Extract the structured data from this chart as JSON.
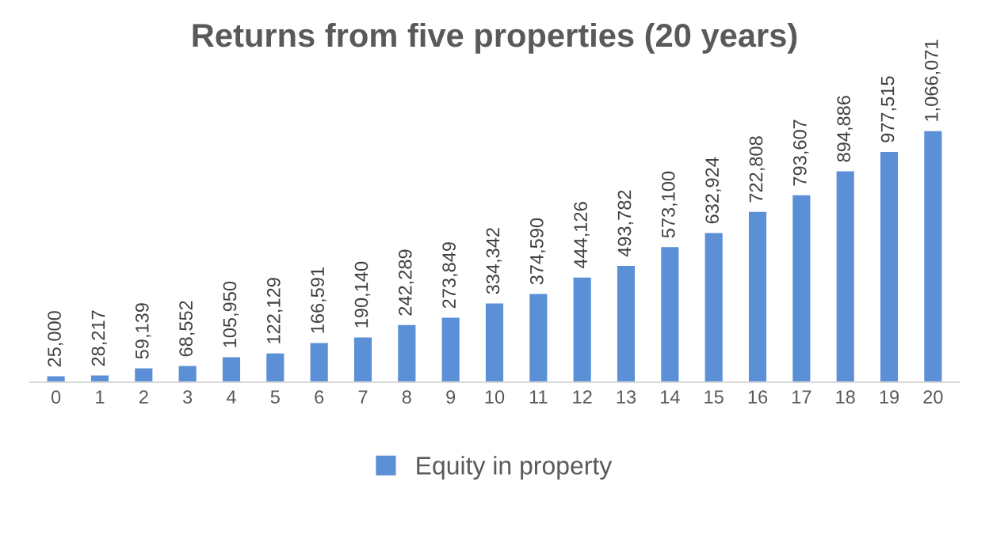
{
  "chart_data": {
    "type": "bar",
    "title": "Returns from five properties (20 years)",
    "categories": [
      "0",
      "1",
      "2",
      "3",
      "4",
      "5",
      "6",
      "7",
      "8",
      "9",
      "10",
      "11",
      "12",
      "13",
      "14",
      "15",
      "16",
      "17",
      "18",
      "19",
      "20"
    ],
    "series": [
      {
        "name": "Equity in property",
        "color": "#5b8fd6",
        "values": [
          25000,
          28217,
          59139,
          68552,
          105950,
          122129,
          166591,
          190140,
          242289,
          273849,
          334342,
          374590,
          444126,
          493782,
          573100,
          632924,
          722808,
          793607,
          894886,
          977515,
          1066071
        ],
        "value_labels": [
          "25,000",
          "28,217",
          "59,139",
          "68,552",
          "105,950",
          "122,129",
          "166,591",
          "190,140",
          "242,289",
          "273,849",
          "334,342",
          "374,590",
          "444,126",
          "493,782",
          "573,100",
          "632,924",
          "722,808",
          "793,607",
          "894,886",
          "977,515",
          "1,066,071"
        ]
      }
    ],
    "legend": "bottom",
    "grid": false,
    "tick_labels": "x"
  }
}
